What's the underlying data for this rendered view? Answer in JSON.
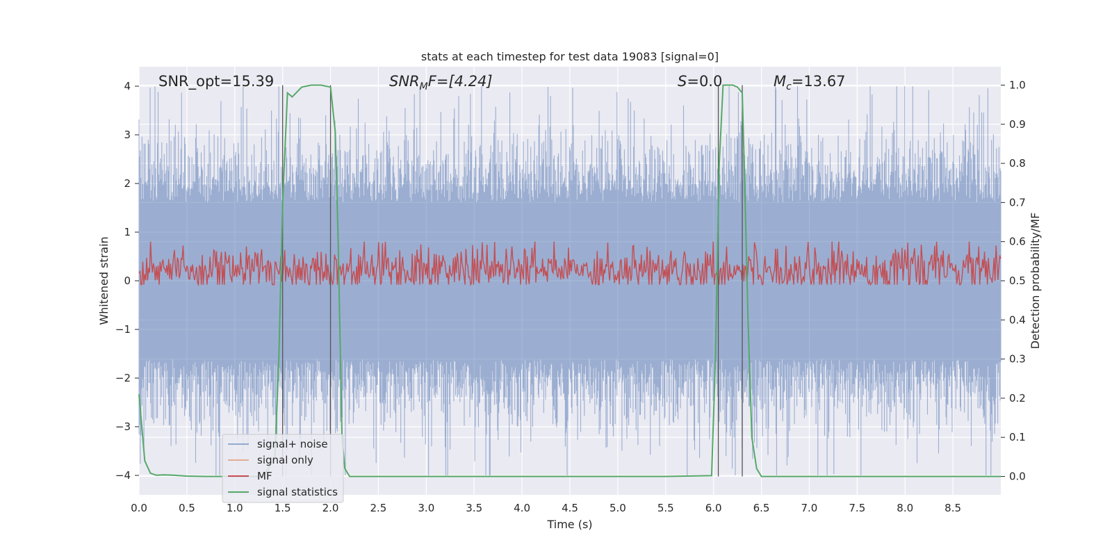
{
  "chart_data": {
    "type": "line",
    "title": "stats at each timestep for test data 19083 [signal=0]",
    "xlabel": "Time (s)",
    "ylabel": "Whitened strain",
    "ylabel_right": "Detection probability/MF",
    "xlim": [
      0.0,
      9.0
    ],
    "ylim": [
      -4.4,
      4.4
    ],
    "ylim_right": [
      -0.047,
      1.047
    ],
    "x_ticks": [
      "0.0",
      "0.5",
      "1.0",
      "1.5",
      "2.0",
      "2.5",
      "3.0",
      "3.5",
      "4.0",
      "4.5",
      "5.0",
      "5.5",
      "6.0",
      "6.5",
      "7.0",
      "7.5",
      "8.0",
      "8.5"
    ],
    "x_tick_values": [
      0.0,
      0.5,
      1.0,
      1.5,
      2.0,
      2.5,
      3.0,
      3.5,
      4.0,
      4.5,
      5.0,
      5.5,
      6.0,
      6.5,
      7.0,
      7.5,
      8.0,
      8.5
    ],
    "y_ticks": [
      "4",
      "3",
      "2",
      "1",
      "0",
      "−1",
      "−2",
      "−3",
      "−4"
    ],
    "y_tick_values": [
      4,
      3,
      2,
      1,
      0,
      -1,
      -2,
      -3,
      -4
    ],
    "y_ticks_right": [
      "1.0",
      "0.9",
      "0.8",
      "0.7",
      "0.6",
      "0.5",
      "0.4",
      "0.3",
      "0.2",
      "0.1",
      "0.0"
    ],
    "y_tick_values_right": [
      1.0,
      0.9,
      0.8,
      0.7,
      0.6,
      0.5,
      0.4,
      0.3,
      0.2,
      0.1,
      0.0
    ],
    "grid": true,
    "legend_position": "lower-left",
    "colors": {
      "background": "#eaeaf2",
      "grid": "#ffffff",
      "noise": "#4c72b0",
      "signal_only": "#dd8452",
      "mf": "#c44e52",
      "statistics": "#55a868",
      "marker": "#555555"
    },
    "annotations": {
      "snr_opt": "SNR_opt=15.39",
      "snr_mf_main": "SNR",
      "snr_mf_sub": "M",
      "snr_mf_tail": "F=[4.24]",
      "s_var": "S",
      "s_val": "=0.0",
      "mc_var": "M",
      "mc_sub": "c",
      "mc_val": "=13.67"
    },
    "vertical_markers_x": [
      1.5,
      2.0,
      6.05,
      6.3
    ],
    "series": [
      {
        "name": "signal+ noise",
        "note": "Gaussian whitened noise, approx. amplitude ±1.7 typical, spikes to ±4",
        "envelope_typical": 1.7
      },
      {
        "name": "signal only",
        "values": []
      },
      {
        "name": "MF",
        "axis": "right",
        "level": 0.53,
        "spread": 0.03
      },
      {
        "name": "signal statistics",
        "axis": "right",
        "x": [
          0.0,
          0.06,
          0.12,
          0.18,
          0.26,
          0.36,
          0.5,
          0.7,
          1.0,
          1.3,
          1.42,
          1.46,
          1.5,
          1.55,
          1.6,
          1.7,
          1.8,
          1.9,
          2.0,
          2.05,
          2.08,
          2.12,
          2.15,
          2.2,
          2.5,
          3.0,
          4.0,
          5.0,
          5.5,
          5.98,
          6.02,
          6.06,
          6.1,
          6.15,
          6.2,
          6.25,
          6.3,
          6.32,
          6.36,
          6.4,
          6.45,
          6.5,
          7.0,
          8.0,
          9.0
        ],
        "y": [
          0.21,
          0.04,
          0.008,
          0.003,
          0.004,
          0.003,
          0.001,
          0.0,
          0.0,
          0.0,
          0.05,
          0.3,
          0.7,
          0.98,
          0.97,
          0.995,
          1.0,
          1.0,
          0.995,
          0.88,
          0.6,
          0.1,
          0.02,
          0.0,
          0.0,
          0.0,
          0.0,
          0.0,
          0.0,
          0.002,
          0.3,
          0.8,
          1.0,
          1.0,
          1.0,
          0.995,
          0.98,
          0.8,
          0.4,
          0.1,
          0.02,
          0.0,
          0.0,
          0.0,
          0.0
        ]
      }
    ]
  }
}
